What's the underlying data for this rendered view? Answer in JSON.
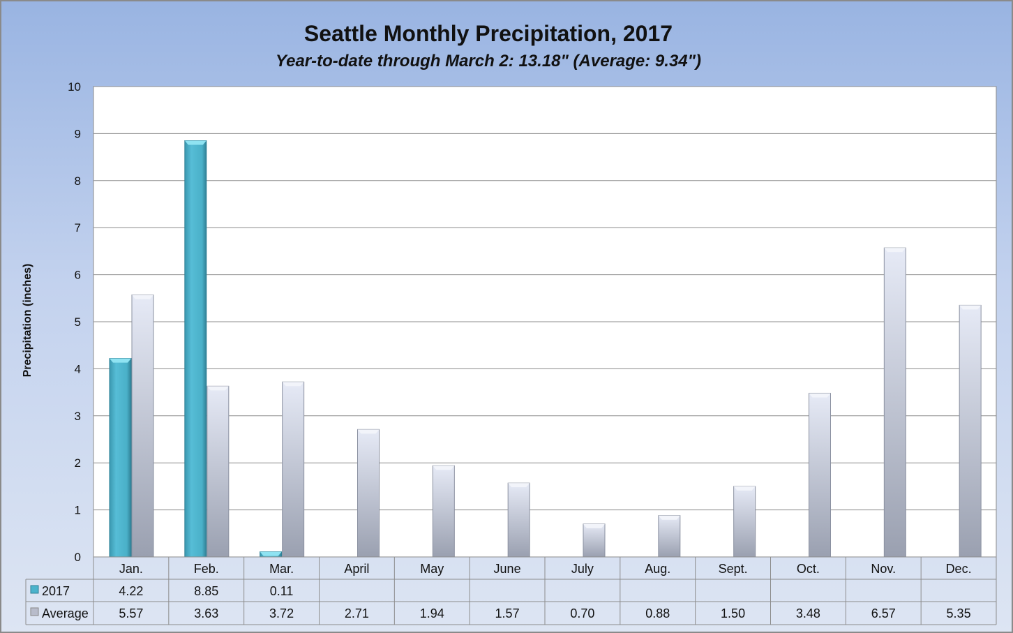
{
  "chart_data": {
    "type": "bar",
    "title": "Seattle Monthly Precipitation, 2017",
    "subtitle": "Year-to-date through March 2: 13.18\" (Average: 9.34\")",
    "xlabel": "",
    "ylabel": "Precipitation (inches)",
    "ylim": [
      0,
      10
    ],
    "yticks": [
      "0",
      "1",
      "2",
      "3",
      "4",
      "5",
      "6",
      "7",
      "8",
      "9",
      "10"
    ],
    "grid": true,
    "legend": "data-table",
    "categories": [
      "Jan.",
      "Feb.",
      "Mar.",
      "April",
      "May",
      "June",
      "July",
      "Aug.",
      "Sept.",
      "Oct.",
      "Nov.",
      "Dec."
    ],
    "series": [
      {
        "name": "2017",
        "color": "#4bb3cc",
        "values": [
          4.22,
          8.85,
          0.11,
          null,
          null,
          null,
          null,
          null,
          null,
          null,
          null,
          null
        ],
        "labels": [
          "4.22",
          "8.85",
          "0.11",
          "",
          "",
          "",
          "",
          "",
          "",
          "",
          "",
          ""
        ]
      },
      {
        "name": "Average",
        "color": "#c9d0e2",
        "values": [
          5.57,
          3.63,
          3.72,
          2.71,
          1.94,
          1.57,
          0.7,
          0.88,
          1.5,
          3.48,
          6.57,
          5.35
        ],
        "labels": [
          "5.57",
          "3.63",
          "3.72",
          "2.71",
          "1.94",
          "1.57",
          "0.70",
          "0.88",
          "1.50",
          "3.48",
          "6.57",
          "5.35"
        ]
      }
    ]
  }
}
